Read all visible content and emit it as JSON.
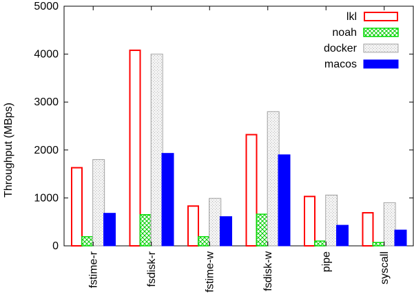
{
  "chart_data": {
    "type": "bar",
    "title": "",
    "xlabel": "",
    "ylabel": "Throughput (MBps)",
    "ylim": [
      0,
      5000
    ],
    "yticks": [
      0,
      1000,
      2000,
      3000,
      4000,
      5000
    ],
    "grid": false,
    "legend_position": "top-right",
    "categories": [
      "fstime-r",
      "fsdisk-r",
      "fstime-w",
      "fsdisk-w",
      "pipe",
      "syscall"
    ],
    "series": [
      {
        "name": "lkl",
        "style": "outline",
        "color": "#ff0000",
        "values": [
          1630,
          4080,
          830,
          2320,
          1030,
          690
        ]
      },
      {
        "name": "noah",
        "style": "crosshatch",
        "color": "#00dd00",
        "values": [
          190,
          650,
          190,
          660,
          100,
          70
        ]
      },
      {
        "name": "docker",
        "style": "dotted",
        "color": "#a0a0a0",
        "values": [
          1800,
          4000,
          990,
          2800,
          1060,
          900
        ]
      },
      {
        "name": "macos",
        "style": "solid",
        "color": "#0000ff",
        "values": [
          680,
          1930,
          610,
          1900,
          430,
          330
        ]
      }
    ]
  }
}
